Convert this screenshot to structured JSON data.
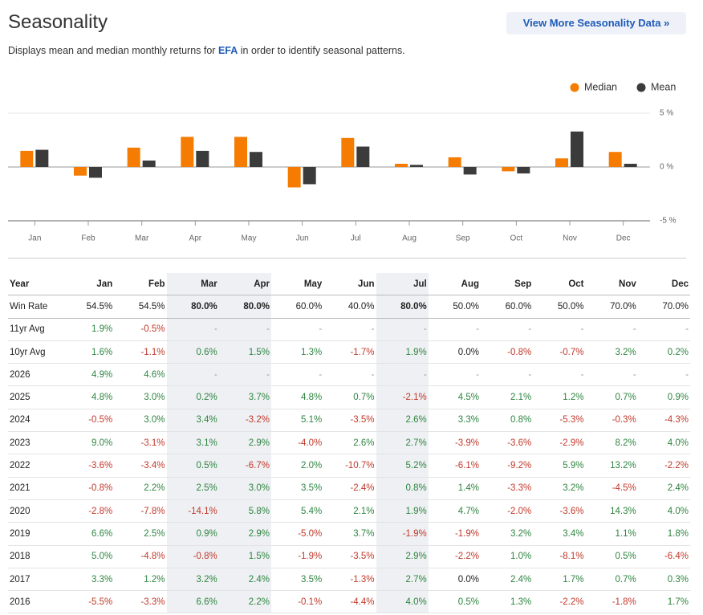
{
  "header": {
    "title": "Seasonality",
    "button": "View More Seasonality Data »",
    "subtitle": {
      "before": "Displays mean and median monthly returns for",
      "ticker": "EFA",
      "after": "in order to identify seasonal patterns."
    }
  },
  "chart_data": {
    "type": "bar",
    "categories": [
      "Jan",
      "Feb",
      "Mar",
      "Apr",
      "May",
      "Jun",
      "Jul",
      "Aug",
      "Sep",
      "Oct",
      "Nov",
      "Dec"
    ],
    "series": [
      {
        "name": "Median",
        "color": "#f57c00",
        "values": [
          1.5,
          -0.8,
          1.8,
          2.8,
          2.8,
          -1.9,
          2.7,
          0.3,
          0.9,
          -0.4,
          0.8,
          1.4
        ]
      },
      {
        "name": "Mean",
        "color": "#3b3b3b",
        "values": [
          1.6,
          -1.0,
          0.6,
          1.5,
          1.4,
          -1.6,
          1.9,
          0.2,
          -0.7,
          -0.6,
          3.3,
          0.3
        ]
      }
    ],
    "ylim": [
      -5,
      5
    ],
    "yticks": [
      {
        "value": -5,
        "label": "-5 %"
      },
      {
        "value": 0,
        "label": "0 %"
      },
      {
        "value": 5,
        "label": "5 %"
      }
    ],
    "grid": true,
    "legend": "top-right"
  },
  "table": {
    "header": [
      "Year",
      "Jan",
      "Feb",
      "Mar",
      "Apr",
      "May",
      "Jun",
      "Jul",
      "Aug",
      "Sep",
      "Oct",
      "Nov",
      "Dec"
    ],
    "highlighted_columns": [
      3,
      4,
      7
    ],
    "win_rate": {
      "label": "Win Rate",
      "cells": [
        "54.5%",
        "54.5%",
        "80.0%",
        "80.0%",
        "60.0%",
        "40.0%",
        "80.0%",
        "50.0%",
        "60.0%",
        "50.0%",
        "70.0%",
        "70.0%"
      ]
    },
    "rows": [
      {
        "label": "11yr Avg",
        "cells": [
          "1.9%",
          "-0.5%",
          "-",
          "-",
          "-",
          "-",
          "-",
          "-",
          "-",
          "-",
          "-",
          "-"
        ]
      },
      {
        "label": "10yr Avg",
        "cells": [
          "1.6%",
          "-1.1%",
          "0.6%",
          "1.5%",
          "1.3%",
          "-1.7%",
          "1.9%",
          "0.0%",
          "-0.8%",
          "-0.7%",
          "3.2%",
          "0.2%"
        ]
      },
      {
        "label": "2026",
        "cells": [
          "4.9%",
          "4.6%",
          "-",
          "-",
          "-",
          "-",
          "-",
          "-",
          "-",
          "-",
          "-",
          "-"
        ]
      },
      {
        "label": "2025",
        "cells": [
          "4.8%",
          "3.0%",
          "0.2%",
          "3.7%",
          "4.8%",
          "0.7%",
          "-2.1%",
          "4.5%",
          "2.1%",
          "1.2%",
          "0.7%",
          "0.9%"
        ]
      },
      {
        "label": "2024",
        "cells": [
          "-0.5%",
          "3.0%",
          "3.4%",
          "-3.2%",
          "5.1%",
          "-3.5%",
          "2.6%",
          "3.3%",
          "0.8%",
          "-5.3%",
          "-0.3%",
          "-4.3%"
        ]
      },
      {
        "label": "2023",
        "cells": [
          "9.0%",
          "-3.1%",
          "3.1%",
          "2.9%",
          "-4.0%",
          "2.6%",
          "2.7%",
          "-3.9%",
          "-3.6%",
          "-2.9%",
          "8.2%",
          "4.0%"
        ]
      },
      {
        "label": "2022",
        "cells": [
          "-3.6%",
          "-3.4%",
          "0.5%",
          "-6.7%",
          "2.0%",
          "-10.7%",
          "5.2%",
          "-6.1%",
          "-9.2%",
          "5.9%",
          "13.2%",
          "-2.2%"
        ]
      },
      {
        "label": "2021",
        "cells": [
          "-0.8%",
          "2.2%",
          "2.5%",
          "3.0%",
          "3.5%",
          "-2.4%",
          "0.8%",
          "1.4%",
          "-3.3%",
          "3.2%",
          "-4.5%",
          "2.4%"
        ]
      },
      {
        "label": "2020",
        "cells": [
          "-2.8%",
          "-7.8%",
          "-14.1%",
          "5.8%",
          "5.4%",
          "2.1%",
          "1.9%",
          "4.7%",
          "-2.0%",
          "-3.6%",
          "14.3%",
          "4.0%"
        ]
      },
      {
        "label": "2019",
        "cells": [
          "6.6%",
          "2.5%",
          "0.9%",
          "2.9%",
          "-5.0%",
          "3.7%",
          "-1.9%",
          "-1.9%",
          "3.2%",
          "3.4%",
          "1.1%",
          "1.8%"
        ]
      },
      {
        "label": "2018",
        "cells": [
          "5.0%",
          "-4.8%",
          "-0.8%",
          "1.5%",
          "-1.9%",
          "-3.5%",
          "2.9%",
          "-2.2%",
          "1.0%",
          "-8.1%",
          "0.5%",
          "-6.4%"
        ]
      },
      {
        "label": "2017",
        "cells": [
          "3.3%",
          "1.2%",
          "3.2%",
          "2.4%",
          "3.5%",
          "-1.3%",
          "2.7%",
          "0.0%",
          "2.4%",
          "1.7%",
          "0.7%",
          "0.3%"
        ]
      },
      {
        "label": "2016",
        "cells": [
          "-5.5%",
          "-3.3%",
          "6.6%",
          "2.2%",
          "-0.1%",
          "-4.4%",
          "4.0%",
          "0.5%",
          "1.3%",
          "-2.2%",
          "-1.8%",
          "1.7%"
        ]
      }
    ]
  }
}
